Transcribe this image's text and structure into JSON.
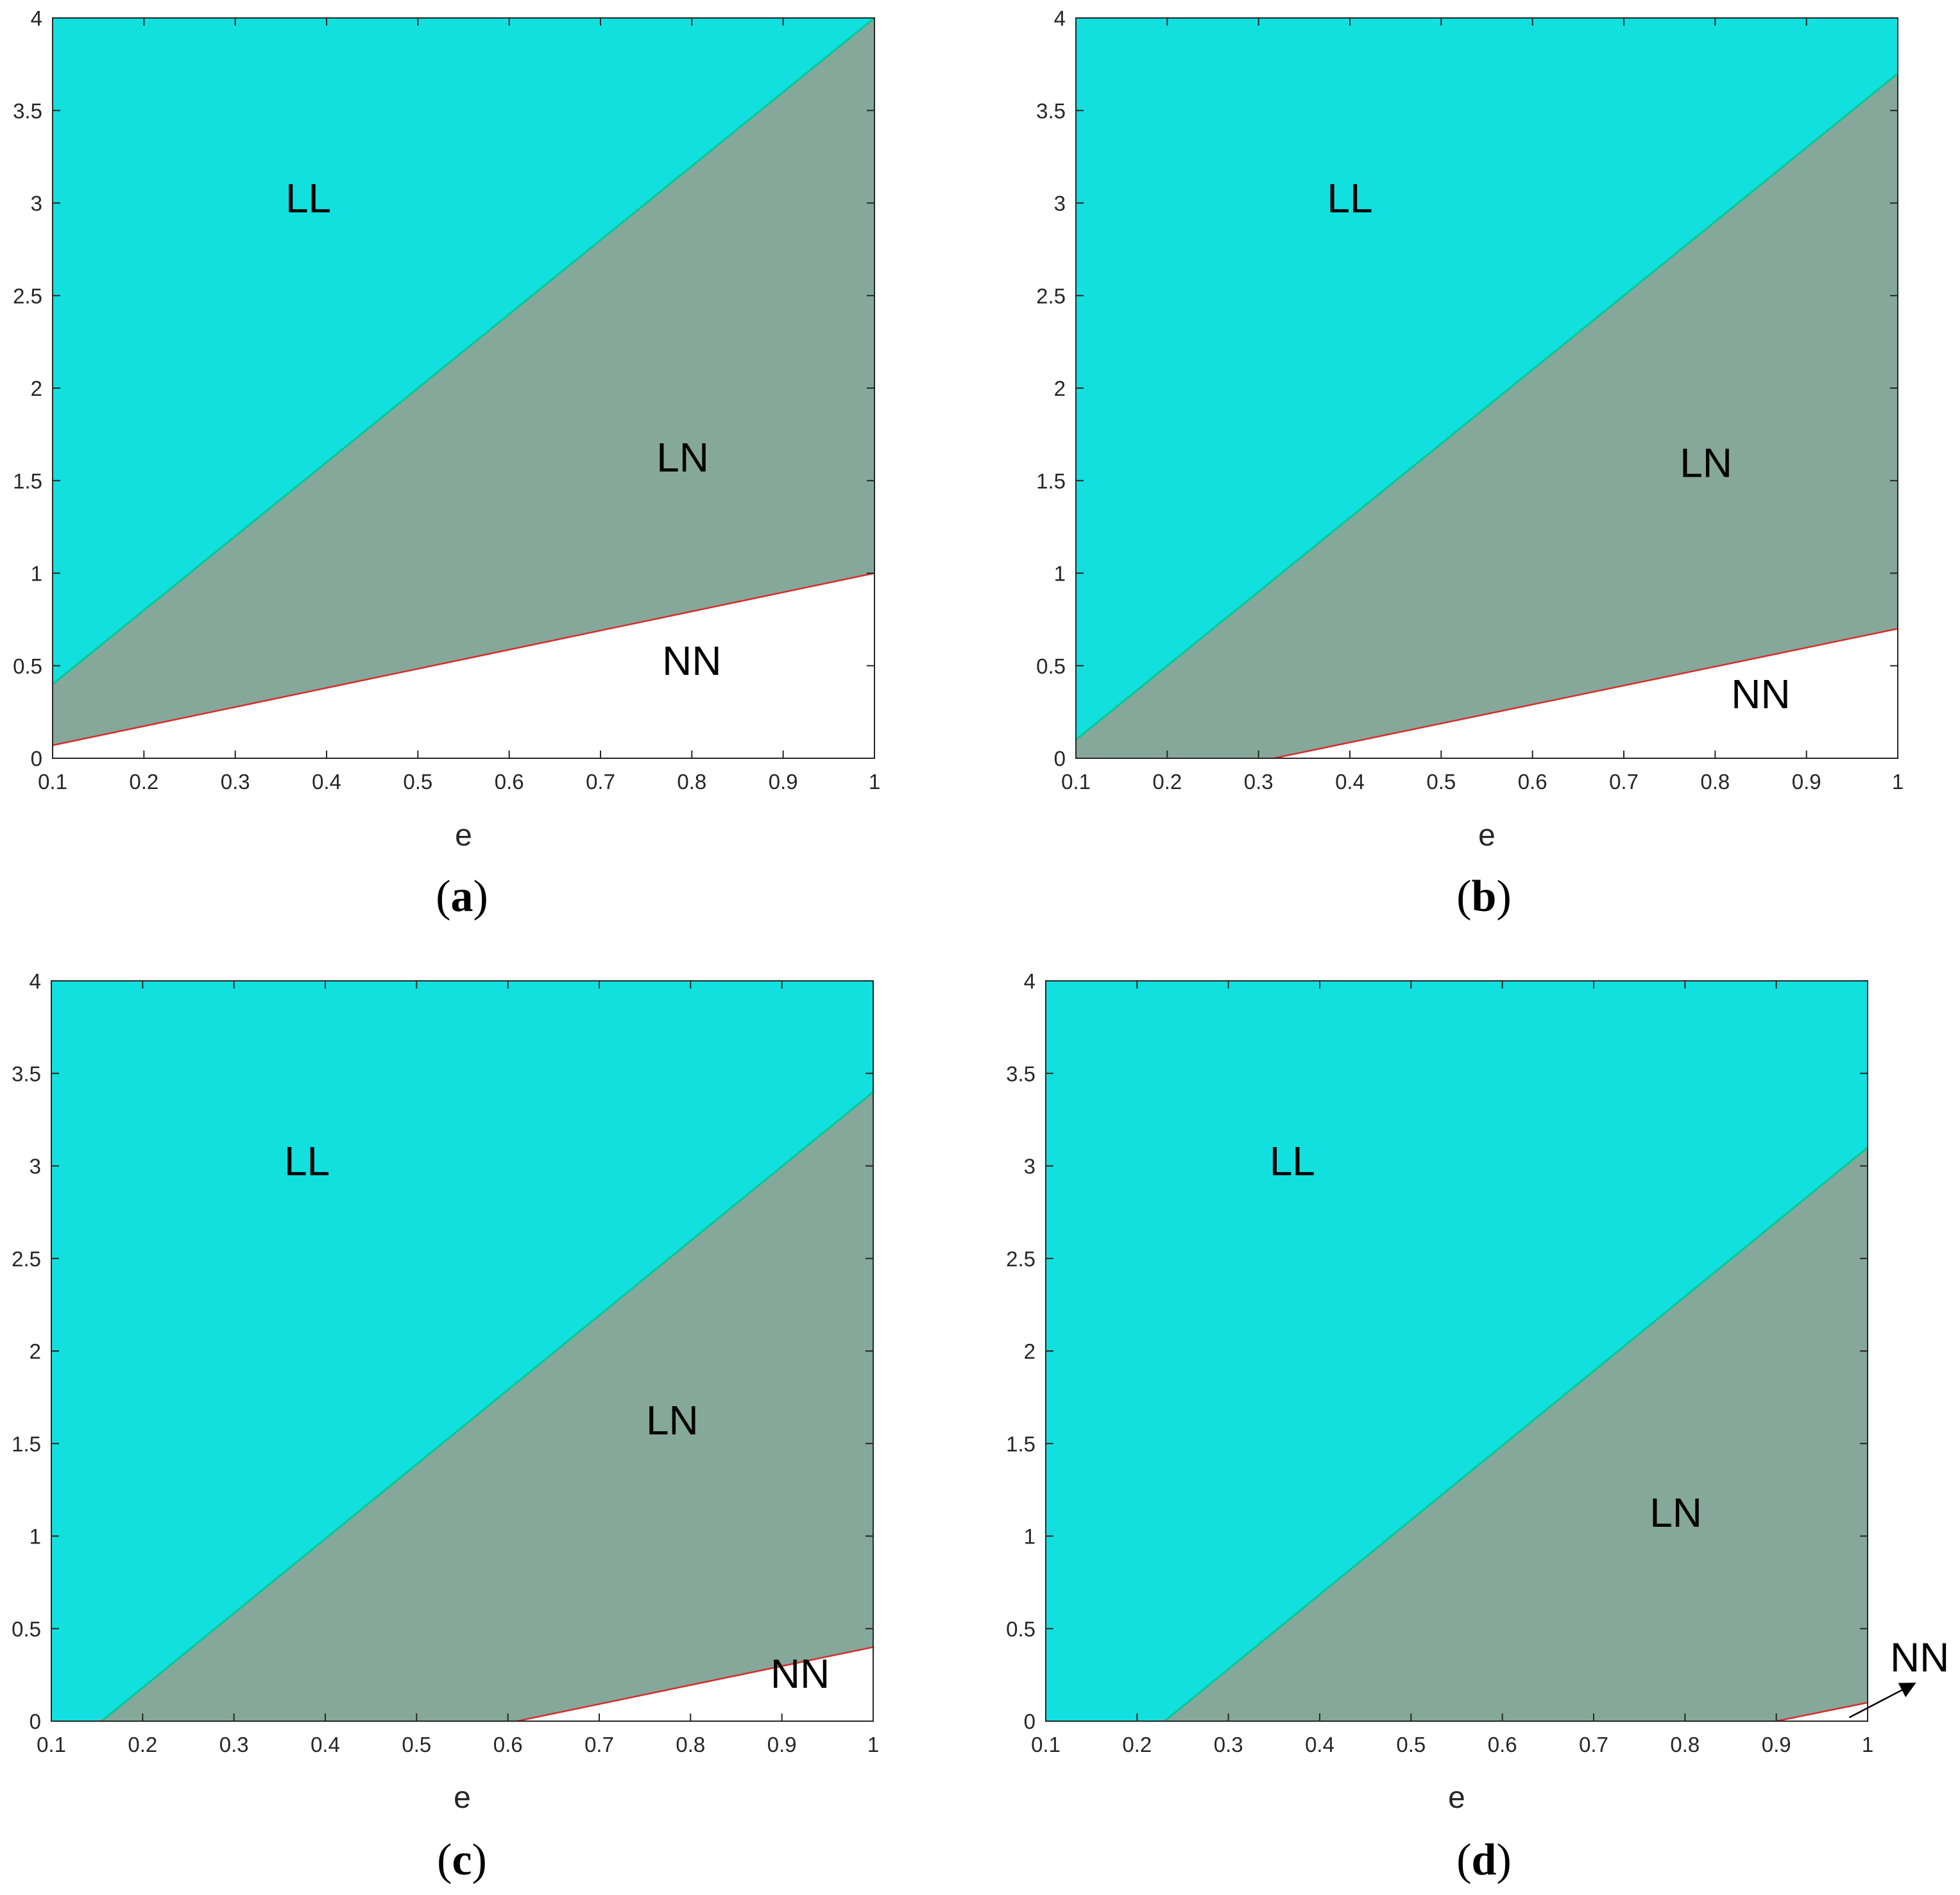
{
  "colors": {
    "LL": "#12e0df",
    "LN": "#85a89a",
    "NN": "#ffffff",
    "upper_boundary": "#00c896",
    "lower_boundary": "#d92b2b",
    "axis": "#262626"
  },
  "chart_data": [
    {
      "panel": "a",
      "type": "area",
      "xlabel": "e",
      "ylabel": "",
      "xlim": [
        0.1,
        1
      ],
      "ylim": [
        0,
        4
      ],
      "xticks": [
        "0.1",
        "0.2",
        "0.3",
        "0.4",
        "0.5",
        "0.6",
        "0.7",
        "0.8",
        "0.9",
        "1"
      ],
      "yticks": [
        "0",
        "0.5",
        "1",
        "1.5",
        "2",
        "2.5",
        "3",
        "3.5",
        "4"
      ],
      "series": [
        {
          "name": "LL",
          "region": "above upper boundary"
        },
        {
          "name": "LN",
          "region": "between boundaries"
        },
        {
          "name": "NN",
          "region": "below lower boundary"
        }
      ],
      "boundaries": {
        "upper": {
          "x": [
            0.1,
            1.0
          ],
          "y": [
            0.4,
            4.0
          ]
        },
        "lower": {
          "x": [
            0.1,
            1.0
          ],
          "y": [
            0.07,
            1.0
          ]
        }
      },
      "region_labels": [
        {
          "text": "LL",
          "x": 0.38,
          "y": 2.95
        },
        {
          "text": "LN",
          "x": 0.79,
          "y": 1.55
        },
        {
          "text": "NN",
          "x": 0.8,
          "y": 0.45
        }
      ],
      "annotations": []
    },
    {
      "panel": "b",
      "type": "area",
      "xlabel": "e",
      "ylabel": "",
      "xlim": [
        0.1,
        1
      ],
      "ylim": [
        0,
        4
      ],
      "xticks": [
        "0.1",
        "0.2",
        "0.3",
        "0.4",
        "0.5",
        "0.6",
        "0.7",
        "0.8",
        "0.9",
        "1"
      ],
      "yticks": [
        "0",
        "0.5",
        "1",
        "1.5",
        "2",
        "2.5",
        "3",
        "3.5",
        "4"
      ],
      "series": [
        {
          "name": "LL",
          "region": "above upper boundary"
        },
        {
          "name": "LN",
          "region": "between boundaries"
        },
        {
          "name": "NN",
          "region": "below lower boundary"
        }
      ],
      "boundaries": {
        "upper": {
          "x": [
            0.1,
            1.0
          ],
          "y": [
            0.1,
            3.7
          ]
        },
        "lower": {
          "x": [
            0.3167,
            1.0
          ],
          "y": [
            0.0,
            0.7
          ]
        }
      },
      "region_labels": [
        {
          "text": "LL",
          "x": 0.4,
          "y": 2.95
        },
        {
          "text": "LN",
          "x": 0.79,
          "y": 1.52
        },
        {
          "text": "NN",
          "x": 0.85,
          "y": 0.27
        }
      ],
      "annotations": []
    },
    {
      "panel": "c",
      "type": "area",
      "xlabel": "e",
      "ylabel": "",
      "xlim": [
        0.1,
        1
      ],
      "ylim": [
        0,
        4
      ],
      "xticks": [
        "0.1",
        "0.2",
        "0.3",
        "0.4",
        "0.5",
        "0.6",
        "0.7",
        "0.8",
        "0.9",
        "1"
      ],
      "yticks": [
        "0",
        "0.5",
        "1",
        "1.5",
        "2",
        "2.5",
        "3",
        "3.5",
        "4"
      ],
      "series": [
        {
          "name": "LL",
          "region": "above upper boundary"
        },
        {
          "name": "LN",
          "region": "between boundaries"
        },
        {
          "name": "NN",
          "region": "below lower boundary"
        }
      ],
      "boundaries": {
        "upper": {
          "x": [
            0.155,
            1.0
          ],
          "y": [
            0.0,
            3.4
          ]
        },
        "lower": {
          "x": [
            0.61,
            1.0
          ],
          "y": [
            0.0,
            0.4
          ]
        }
      },
      "region_labels": [
        {
          "text": "LL",
          "x": 0.38,
          "y": 2.95
        },
        {
          "text": "LN",
          "x": 0.78,
          "y": 1.55
        },
        {
          "text": "NN",
          "x": 0.92,
          "y": 0.18
        }
      ],
      "annotations": []
    },
    {
      "panel": "d",
      "type": "area",
      "xlabel": "e",
      "ylabel": "",
      "xlim": [
        0.1,
        1
      ],
      "ylim": [
        0,
        4
      ],
      "xticks": [
        "0.1",
        "0.2",
        "0.3",
        "0.4",
        "0.5",
        "0.6",
        "0.7",
        "0.8",
        "0.9",
        "1"
      ],
      "yticks": [
        "0",
        "0.5",
        "1",
        "1.5",
        "2",
        "2.5",
        "3",
        "3.5",
        "4"
      ],
      "series": [
        {
          "name": "LL",
          "region": "above upper boundary"
        },
        {
          "name": "LN",
          "region": "between boundaries"
        },
        {
          "name": "NN",
          "region": "below lower boundary"
        }
      ],
      "boundaries": {
        "upper": {
          "x": [
            0.23,
            1.0
          ],
          "y": [
            0.0,
            3.1
          ]
        },
        "lower": {
          "x": [
            0.9,
            1.0
          ],
          "y": [
            0.0,
            0.1
          ]
        }
      },
      "region_labels": [
        {
          "text": "LL",
          "x": 0.37,
          "y": 2.95
        },
        {
          "text": "LN",
          "x": 0.79,
          "y": 1.05
        }
      ],
      "annotations": [
        {
          "text": "NN",
          "arrow_from": [
            0.98,
            0.02
          ],
          "arrow_to": [
            1.05,
            0.2
          ]
        }
      ]
    }
  ],
  "panel_labels": [
    {
      "open": "(",
      "letter": "a",
      "close": ")"
    },
    {
      "open": "(",
      "letter": "b",
      "close": ")"
    },
    {
      "open": "(",
      "letter": "c",
      "close": ")"
    },
    {
      "open": "(",
      "letter": "d",
      "close": ")"
    }
  ]
}
